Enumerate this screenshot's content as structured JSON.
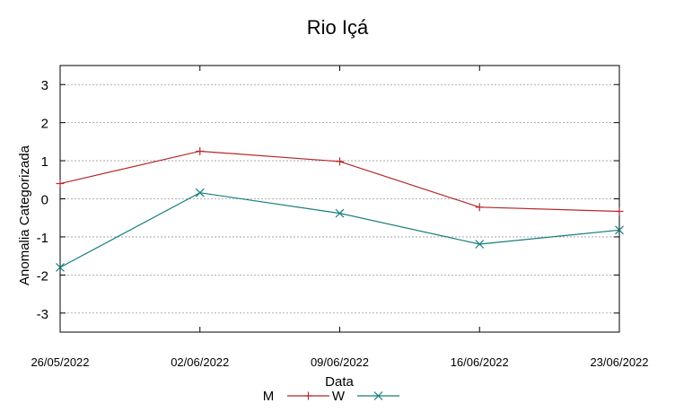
{
  "chart_data": {
    "type": "line",
    "title": "Rio Içá",
    "xlabel": "Data",
    "ylabel": "Anomalia Categorizada",
    "categories": [
      "26/05/2022",
      "02/06/2022",
      "09/06/2022",
      "16/06/2022",
      "23/06/2022"
    ],
    "yticks": [
      "3",
      "2",
      "1",
      "0",
      "-1",
      "-2",
      "-3"
    ],
    "ylim": [
      -3.5,
      3.5
    ],
    "grid": true,
    "legend_position": "bottom-center",
    "series": [
      {
        "name": "M",
        "color": "#b5282d",
        "marker": "plus",
        "values": [
          0.4,
          1.25,
          0.98,
          -0.22,
          -0.33
        ]
      },
      {
        "name": "W",
        "color": "#177d7e",
        "marker": "cross",
        "values": [
          -1.8,
          0.16,
          -0.38,
          -1.19,
          -0.82
        ]
      }
    ]
  }
}
